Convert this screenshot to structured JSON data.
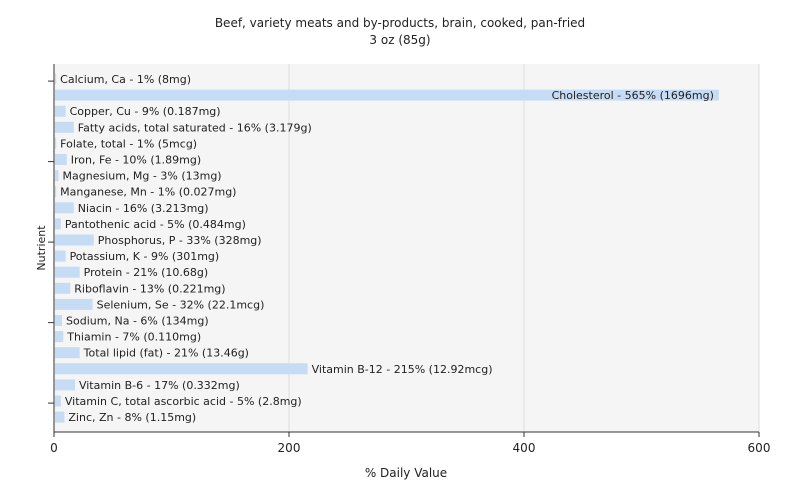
{
  "chart_data": {
    "type": "bar",
    "orientation": "horizontal",
    "title": "Beef, variety meats and by-products, brain, cooked, pan-fried",
    "subtitle": "3 oz (85g)",
    "xlabel": "% Daily Value",
    "ylabel": "Nutrient",
    "xlim": [
      0,
      600
    ],
    "x_ticks": [
      "0",
      "200",
      "400",
      "600"
    ],
    "grid": true,
    "bar_color": "#c6dcf5",
    "plot_background": "#f5f5f5",
    "categories": [
      "Calcium, Ca",
      "Cholesterol",
      "Copper, Cu",
      "Fatty acids, total saturated",
      "Folate, total",
      "Iron, Fe",
      "Magnesium, Mg",
      "Manganese, Mn",
      "Niacin",
      "Pantothenic acid",
      "Phosphorus, P",
      "Potassium, K",
      "Protein",
      "Riboflavin",
      "Selenium, Se",
      "Sodium, Na",
      "Thiamin",
      "Total lipid (fat)",
      "Vitamin B-12",
      "Vitamin B-6",
      "Vitamin C, total ascorbic acid",
      "Zinc, Zn"
    ],
    "values": [
      1,
      565,
      9,
      16,
      1,
      10,
      3,
      1,
      16,
      5,
      33,
      9,
      21,
      13,
      32,
      6,
      7,
      21,
      215,
      17,
      5,
      8
    ],
    "labels": [
      "Calcium, Ca - 1% (8mg)",
      "Cholesterol - 565% (1696mg)",
      "Copper, Cu - 9% (0.187mg)",
      "Fatty acids, total saturated - 16% (3.179g)",
      "Folate, total - 1% (5mcg)",
      "Iron, Fe - 10% (1.89mg)",
      "Magnesium, Mg - 3% (13mg)",
      "Manganese, Mn - 1% (0.027mg)",
      "Niacin - 16% (3.213mg)",
      "Pantothenic acid - 5% (0.484mg)",
      "Phosphorus, P - 33% (328mg)",
      "Potassium, K - 9% (301mg)",
      "Protein - 21% (10.68g)",
      "Riboflavin - 13% (0.221mg)",
      "Selenium, Se - 32% (22.1mcg)",
      "Sodium, Na - 6% (134mg)",
      "Thiamin - 7% (0.110mg)",
      "Total lipid (fat) - 21% (13.46g)",
      "Vitamin B-12 - 215% (12.92mcg)",
      "Vitamin B-6 - 17% (0.332mg)",
      "Vitamin C, total ascorbic acid - 5% (2.8mg)",
      "Zinc, Zn - 8% (1.15mg)"
    ]
  }
}
